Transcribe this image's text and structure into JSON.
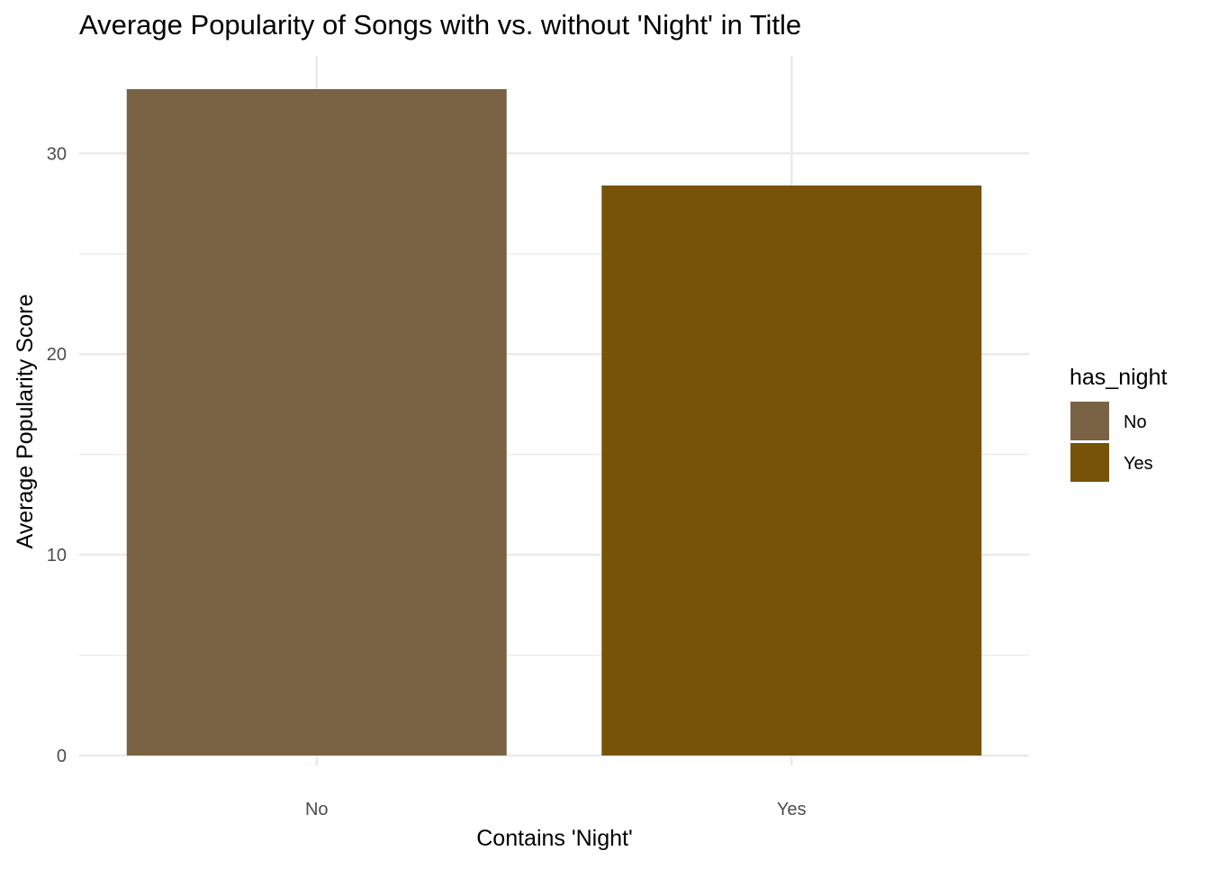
{
  "chart_data": {
    "type": "bar",
    "title": "Average Popularity of Songs with vs. without 'Night' in Title",
    "xlabel": "Contains 'Night'",
    "ylabel": "Average Popularity Score",
    "categories": [
      "No",
      "Yes"
    ],
    "values": [
      33.2,
      28.4
    ],
    "ylim": [
      0,
      33.2
    ],
    "y_ticks": [
      0,
      10,
      20,
      30
    ],
    "y_tick_labels": [
      "0",
      "10",
      "20",
      "30"
    ],
    "y_minor_ticks": [
      5,
      15,
      25
    ],
    "grid": true,
    "colors": [
      "#7a6344",
      "#77530a"
    ],
    "legend": {
      "title": "has_night",
      "position": "right",
      "entries": [
        {
          "label": "No",
          "color": "#7a6344"
        },
        {
          "label": "Yes",
          "color": "#77530a"
        }
      ]
    }
  }
}
